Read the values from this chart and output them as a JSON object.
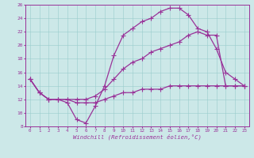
{
  "xlabel": "Windchill (Refroidissement éolien,°C)",
  "bg_color": "#cce8e8",
  "line_color": "#993399",
  "grid_color": "#99cccc",
  "xlim": [
    -0.5,
    23.5
  ],
  "ylim": [
    8,
    26
  ],
  "xticks": [
    0,
    1,
    2,
    3,
    4,
    5,
    6,
    7,
    8,
    9,
    10,
    11,
    12,
    13,
    14,
    15,
    16,
    17,
    18,
    19,
    20,
    21,
    22,
    23
  ],
  "yticks": [
    8,
    10,
    12,
    14,
    16,
    18,
    20,
    22,
    24,
    26
  ],
  "line1_x": [
    0,
    1,
    2,
    3,
    4,
    5,
    6,
    7,
    8,
    9,
    10,
    11,
    12,
    13,
    14,
    15,
    16,
    17,
    18,
    19,
    20,
    21,
    22,
    23
  ],
  "line1_y": [
    15,
    13,
    12,
    12,
    11.5,
    9,
    8.5,
    11,
    14,
    18.5,
    21.5,
    22.5,
    23.5,
    24,
    25,
    25.5,
    25.5,
    24.5,
    22.5,
    22,
    19.5,
    16,
    15,
    14
  ],
  "line2_x": [
    0,
    1,
    2,
    3,
    4,
    5,
    6,
    7,
    8,
    9,
    10,
    11,
    12,
    13,
    14,
    15,
    16,
    17,
    18,
    19,
    20,
    21,
    22,
    23
  ],
  "line2_y": [
    15,
    13,
    12,
    12,
    12,
    12,
    12,
    12.5,
    13.5,
    15,
    16.5,
    17.5,
    18,
    19,
    19.5,
    20,
    20.5,
    21.5,
    22,
    21.5,
    21.5,
    14,
    14,
    14
  ],
  "line3_x": [
    0,
    1,
    2,
    3,
    4,
    5,
    6,
    7,
    8,
    9,
    10,
    11,
    12,
    13,
    14,
    15,
    16,
    17,
    18,
    19,
    20,
    21,
    22,
    23
  ],
  "line3_y": [
    15,
    13,
    12,
    12,
    12,
    11.5,
    11.5,
    11.5,
    12,
    12.5,
    13,
    13,
    13.5,
    13.5,
    13.5,
    14,
    14,
    14,
    14,
    14,
    14,
    14,
    14,
    14
  ]
}
